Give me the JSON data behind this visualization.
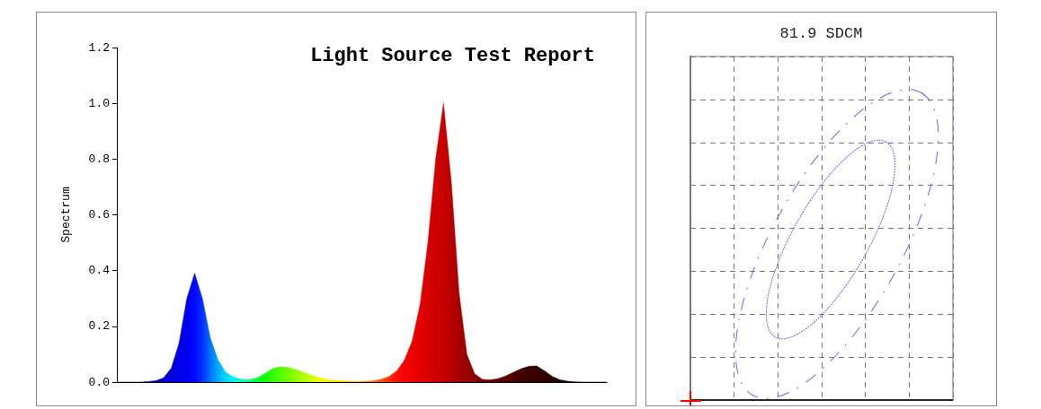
{
  "chart_data": [
    {
      "type": "area",
      "title": "Light Source Test Report",
      "ylabel": "Spectrum",
      "ylim": [
        0,
        1.2
      ],
      "yticks": [
        {
          "value": 0,
          "label": "0.0"
        },
        0.2,
        0.4,
        0.6,
        0.8,
        {
          "value": 1,
          "label": "1.0"
        },
        1.2
      ],
      "tick_labels": "y",
      "grid": false,
      "categories": [
        null,
        null,
        null,
        null,
        null,
        null,
        null,
        null,
        null,
        null,
        null,
        null,
        null,
        null,
        null,
        null,
        null,
        null,
        null,
        null,
        null,
        null,
        null,
        null,
        null,
        null,
        null,
        null,
        null,
        null,
        null,
        null,
        null,
        null,
        null,
        null,
        null,
        null,
        null,
        null,
        null,
        null,
        null,
        null,
        null,
        null,
        null,
        null,
        null,
        null,
        null,
        null,
        null,
        null,
        null,
        null,
        null,
        null,
        null,
        null,
        null,
        null,
        null,
        null
      ],
      "values": [
        0,
        0,
        0,
        0,
        0.002,
        0.005,
        0.015,
        0.05,
        0.14,
        0.3,
        0.39,
        0.3,
        0.16,
        0.08,
        0.035,
        0.018,
        0.01,
        0.008,
        0.015,
        0.03,
        0.048,
        0.055,
        0.053,
        0.045,
        0.035,
        0.025,
        0.017,
        0.01,
        0.006,
        0.004,
        0.003,
        0.002,
        0.003,
        0.005,
        0.01,
        0.02,
        0.04,
        0.08,
        0.15,
        0.28,
        0.5,
        0.8,
        1.0,
        0.72,
        0.32,
        0.1,
        0.03,
        0.01,
        0.008,
        0.012,
        0.022,
        0.035,
        0.048,
        0.057,
        0.058,
        0.04,
        0.02,
        0.008,
        0.003,
        0.001,
        0,
        0,
        0,
        0
      ],
      "colors": [
        "#2a0060",
        "#2a0060",
        "#1a0080",
        "#10009a",
        "#0800b0",
        "#0000b8",
        "#0000c8",
        "#0000d8",
        "#0000e8",
        "#0000f0",
        "#0008ff",
        "#0030ff",
        "#0070ff",
        "#00a8ff",
        "#00d8ff",
        "#00f0f0",
        "#00ffc0",
        "#00ff80",
        "#00ff40",
        "#10ff00",
        "#30ff00",
        "#50ff00",
        "#70ff00",
        "#90ff00",
        "#b0ff00",
        "#d0ff00",
        "#f0ff00",
        "#fff000",
        "#ffe000",
        "#ffd000",
        "#ffc000",
        "#ffa800",
        "#ff9000",
        "#ff7000",
        "#ff5000",
        "#ff3000",
        "#ff1000",
        "#f80000",
        "#ee0000",
        "#e40000",
        "#da0000",
        "#d00000",
        "#c80000",
        "#b80000",
        "#a80000",
        "#980000",
        "#880000",
        "#780000",
        "#6c0000",
        "#600000",
        "#560000",
        "#4c0000",
        "#440000",
        "#3c0000",
        "#360000",
        "#300000",
        "#2a0000",
        "#2a0000",
        "#2a0000",
        "#2a0000",
        "#2a0000",
        "#2a0000",
        "#2a0000",
        "#2a0000"
      ]
    },
    {
      "type": "other",
      "title": "81.9 SDCM"
    }
  ]
}
